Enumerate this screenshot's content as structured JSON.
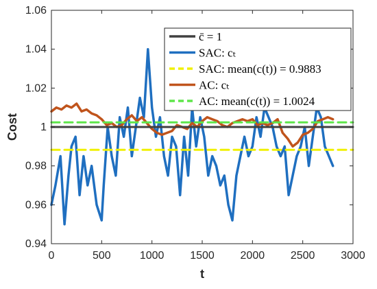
{
  "chart_data": {
    "type": "line",
    "xlabel": "t",
    "ylabel": "Cost",
    "xlim": [
      0,
      3000
    ],
    "ylim": [
      0.94,
      1.06
    ],
    "xticks": [
      0,
      500,
      1000,
      1500,
      2000,
      2500,
      3000
    ],
    "xtick_labels": [
      "0",
      "500",
      "1000",
      "1500",
      "2000",
      "2500",
      "3000"
    ],
    "yticks": [
      0.94,
      0.96,
      0.98,
      1.0,
      1.02,
      1.04,
      1.06
    ],
    "ytick_labels": [
      "0.94",
      "0.96",
      "0.98",
      "1",
      "1.02",
      "1.04",
      "1.06"
    ],
    "grid": false,
    "legend_position": "top-right",
    "series": [
      {
        "name": "c̄ = 1",
        "legend_label": "c̄ = 1",
        "style": "solid",
        "color": "#404040",
        "x": [
          0,
          3000
        ],
        "y": [
          1.0,
          1.0
        ]
      },
      {
        "name": "SAC: c_t",
        "legend_label": "SAC: cₜ",
        "style": "solid",
        "color": "#1f6fc0",
        "x": [
          0,
          40,
          90,
          130,
          170,
          200,
          240,
          280,
          320,
          360,
          400,
          450,
          500,
          520,
          560,
          600,
          640,
          680,
          720,
          760,
          800,
          840,
          880,
          920,
          960,
          1000,
          1040,
          1080,
          1120,
          1160,
          1200,
          1240,
          1280,
          1320,
          1360,
          1400,
          1440,
          1480,
          1520,
          1560,
          1600,
          1640,
          1680,
          1720,
          1760,
          1800,
          1840,
          1880,
          1920,
          1960,
          2000,
          2040,
          2080,
          2120,
          2160,
          2200,
          2240,
          2280,
          2320,
          2360,
          2400,
          2440,
          2480,
          2520,
          2560,
          2600,
          2640,
          2680,
          2720,
          2760,
          2800
        ],
        "y": [
          0.96,
          0.97,
          0.985,
          0.95,
          0.975,
          0.99,
          0.995,
          0.965,
          0.985,
          0.97,
          0.98,
          0.96,
          0.952,
          0.97,
          1.0,
          0.985,
          0.975,
          1.005,
          0.995,
          1.01,
          0.985,
          1.0,
          1.015,
          1.005,
          1.04,
          1.01,
          0.995,
          1.005,
          0.985,
          0.975,
          0.995,
          0.99,
          0.965,
          0.995,
          0.975,
          1.01,
          0.99,
          1.005,
          0.995,
          0.975,
          0.985,
          0.98,
          0.97,
          0.975,
          0.96,
          0.952,
          0.975,
          0.985,
          0.995,
          0.985,
          0.99,
          1.005,
          0.995,
          1.01,
          1.005,
          1.0,
          0.99,
          0.985,
          0.99,
          0.965,
          0.975,
          0.985,
          0.99,
          1.0,
          0.98,
          0.995,
          1.01,
          1.005,
          0.99,
          0.985,
          0.98
        ]
      },
      {
        "name": "SAC: mean(c(t)) = 0.9883",
        "legend_label": "SAC: mean(c(t)) = 0.9883",
        "style": "dashed",
        "color": "#f0f000",
        "x": [
          0,
          3000
        ],
        "y": [
          0.9883,
          0.9883
        ]
      },
      {
        "name": "AC: c_t",
        "legend_label": "AC: cₜ",
        "style": "solid",
        "color": "#c0541c",
        "x": [
          0,
          50,
          100,
          150,
          200,
          250,
          300,
          350,
          400,
          450,
          500,
          550,
          600,
          650,
          700,
          750,
          800,
          850,
          900,
          950,
          1000,
          1050,
          1100,
          1150,
          1200,
          1250,
          1300,
          1350,
          1400,
          1450,
          1500,
          1550,
          1600,
          1650,
          1700,
          1750,
          1800,
          1850,
          1900,
          1950,
          2000,
          2050,
          2100,
          2150,
          2200,
          2250,
          2300,
          2350,
          2400,
          2450,
          2500,
          2550,
          2600,
          2650,
          2700,
          2750,
          2800
        ],
        "y": [
          1.008,
          1.01,
          1.009,
          1.011,
          1.01,
          1.012,
          1.008,
          1.009,
          1.007,
          1.006,
          1.004,
          1.001,
          1.002,
          1.0,
          1.001,
          1.004,
          1.006,
          1.003,
          1.005,
          1.002,
          0.999,
          0.997,
          0.996,
          0.997,
          0.998,
          1.001,
          1.0,
          0.999,
          1.002,
          1.0,
          1.003,
          1.005,
          1.004,
          1.003,
          1.001,
          1.0,
          1.002,
          1.003,
          1.004,
          1.003,
          1.004,
          1.001,
          1.002,
          1.001,
          1.002,
          1.004,
          0.997,
          0.994,
          0.99,
          0.992,
          0.996,
          0.997,
          0.999,
          1.003,
          1.004,
          1.005,
          1.004
        ]
      },
      {
        "name": "AC: mean(c(t)) = 1.0024",
        "legend_label": "AC: mean(c(t)) = 1.0024",
        "style": "dashed",
        "color": "#5ee64a",
        "x": [
          0,
          3000
        ],
        "y": [
          1.0024,
          1.0024
        ]
      }
    ]
  }
}
